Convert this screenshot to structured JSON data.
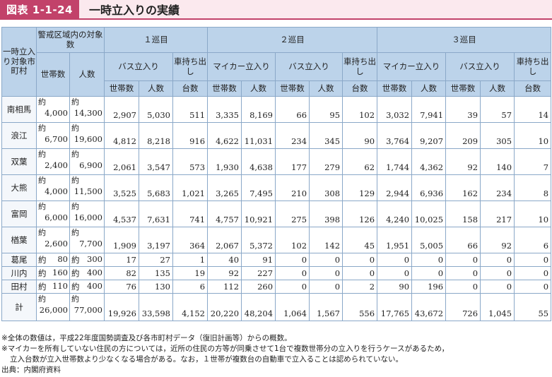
{
  "header": {
    "badge": "図表 1-1-24",
    "title": "一時立入りの実績"
  },
  "table": {
    "head": {
      "muni_col": "一時立入り対象市町村",
      "alert_zone": "警戒区域内の対象数",
      "households": "世帯数",
      "people": "人数",
      "round1": "１巡目",
      "round2": "２巡目",
      "round3": "３巡目",
      "bus": "バス立入り",
      "mycar": "マイカー立入り",
      "car_out": "車持ち出し",
      "units": "台数"
    },
    "approx": "約",
    "rows": [
      {
        "name": "南相馬",
        "hh": "4,000",
        "pp": "14,300",
        "r1": [
          "2,907",
          "5,030",
          "511"
        ],
        "r2": [
          "3,335",
          "8,169",
          "66",
          "95",
          "102"
        ],
        "r3": [
          "3,032",
          "7,941",
          "39",
          "57",
          "14"
        ]
      },
      {
        "name": "浪江",
        "hh": "6,700",
        "pp": "19,600",
        "r1": [
          "4,812",
          "8,218",
          "916"
        ],
        "r2": [
          "4,622",
          "11,031",
          "234",
          "345",
          "90"
        ],
        "r3": [
          "3,764",
          "9,207",
          "209",
          "305",
          "10"
        ]
      },
      {
        "name": "双葉",
        "hh": "2,400",
        "pp": "6,900",
        "r1": [
          "2,061",
          "3,547",
          "573"
        ],
        "r2": [
          "1,930",
          "4,638",
          "177",
          "279",
          "62"
        ],
        "r3": [
          "1,744",
          "4,362",
          "92",
          "140",
          "7"
        ]
      },
      {
        "name": "大熊",
        "hh": "4,000",
        "pp": "11,500",
        "r1": [
          "3,525",
          "5,683",
          "1,021"
        ],
        "r2": [
          "3,265",
          "7,495",
          "210",
          "308",
          "129"
        ],
        "r3": [
          "2,944",
          "6,936",
          "162",
          "234",
          "8"
        ]
      },
      {
        "name": "富岡",
        "hh": "6,000",
        "pp": "16,000",
        "r1": [
          "4,537",
          "7,631",
          "741"
        ],
        "r2": [
          "4,757",
          "10,921",
          "275",
          "398",
          "126"
        ],
        "r3": [
          "4,240",
          "10,025",
          "158",
          "217",
          "10"
        ]
      },
      {
        "name": "楢葉",
        "hh": "2,600",
        "pp": "7,700",
        "r1": [
          "1,909",
          "3,197",
          "364"
        ],
        "r2": [
          "2,067",
          "5,372",
          "102",
          "142",
          "45"
        ],
        "r3": [
          "1,951",
          "5,005",
          "66",
          "92",
          "6"
        ]
      },
      {
        "name": "葛尾",
        "hh": "80",
        "pp": "300",
        "r1": [
          "17",
          "27",
          "1"
        ],
        "r2": [
          "40",
          "91",
          "0",
          "0",
          "0"
        ],
        "r3": [
          "0",
          "0",
          "0",
          "0",
          "0"
        ]
      },
      {
        "name": "川内",
        "hh": "160",
        "pp": "400",
        "r1": [
          "82",
          "135",
          "19"
        ],
        "r2": [
          "92",
          "227",
          "0",
          "0",
          "0"
        ],
        "r3": [
          "0",
          "0",
          "0",
          "0",
          "0"
        ]
      },
      {
        "name": "田村",
        "hh": "110",
        "pp": "400",
        "r1": [
          "76",
          "130",
          "6"
        ],
        "r2": [
          "112",
          "260",
          "0",
          "0",
          "2"
        ],
        "r3": [
          "90",
          "196",
          "0",
          "0",
          "0"
        ]
      }
    ],
    "total": {
      "name": "計",
      "hh": "26,000",
      "pp": "77,000",
      "r1": [
        "19,926",
        "33,598",
        "4,152"
      ],
      "r2": [
        "20,220",
        "48,204",
        "1,064",
        "1,567",
        "556"
      ],
      "r3": [
        "17,765",
        "43,672",
        "726",
        "1,045",
        "55"
      ]
    }
  },
  "notes": {
    "n1": "※全体の数値は，平成22年度国勢調査及び各市町村データ（復旧計画等）からの概数。",
    "n2a": "※マイカーを所有していない住民の方については，近所の住民の方等が同乗させて1台で複数世帯分の立入りを行うケースがあるため，",
    "n2b": "立入台数が立入世帯数より少なくなる場合がある。なお，１世帯が複数台の自動車で立入ることは認められていない。",
    "source": "出典：内閣府資料"
  }
}
